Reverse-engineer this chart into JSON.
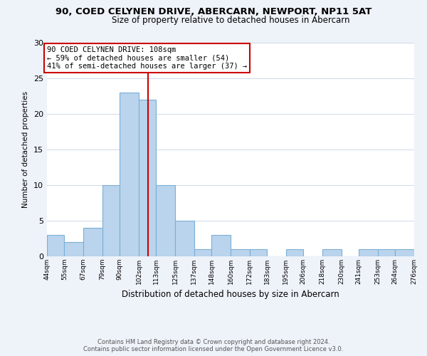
{
  "title": "90, COED CELYNEN DRIVE, ABERCARN, NEWPORT, NP11 5AT",
  "subtitle": "Size of property relative to detached houses in Abercarn",
  "xlabel": "Distribution of detached houses by size in Abercarn",
  "ylabel": "Number of detached properties",
  "bar_edges": [
    44,
    55,
    67,
    79,
    90,
    102,
    113,
    125,
    137,
    148,
    160,
    172,
    183,
    195,
    206,
    218,
    230,
    241,
    253,
    264,
    276
  ],
  "bar_heights": [
    3,
    2,
    4,
    10,
    23,
    22,
    10,
    5,
    1,
    3,
    1,
    1,
    0,
    1,
    0,
    1,
    0,
    1,
    1,
    1
  ],
  "bar_color": "#bad4ed",
  "bar_edgecolor": "#7aafd4",
  "vline_x": 108,
  "vline_color": "#cc0000",
  "ylim": [
    0,
    30
  ],
  "annotation_line1": "90 COED CELYNEN DRIVE: 108sqm",
  "annotation_line2": "← 59% of detached houses are smaller (54)",
  "annotation_line3": "41% of semi-detached houses are larger (37) →",
  "annotation_box_facecolor": "#ffffff",
  "annotation_box_edgecolor": "#cc0000",
  "footer_line1": "Contains HM Land Registry data © Crown copyright and database right 2024.",
  "footer_line2": "Contains public sector information licensed under the Open Government Licence v3.0.",
  "tick_labels": [
    "44sqm",
    "55sqm",
    "67sqm",
    "79sqm",
    "90sqm",
    "102sqm",
    "113sqm",
    "125sqm",
    "137sqm",
    "148sqm",
    "160sqm",
    "172sqm",
    "183sqm",
    "195sqm",
    "206sqm",
    "218sqm",
    "230sqm",
    "241sqm",
    "253sqm",
    "264sqm",
    "276sqm"
  ],
  "yticks": [
    0,
    5,
    10,
    15,
    20,
    25,
    30
  ],
  "figure_bg": "#eef2f9",
  "plot_bg": "#ffffff",
  "grid_color": "#d0d8e8"
}
